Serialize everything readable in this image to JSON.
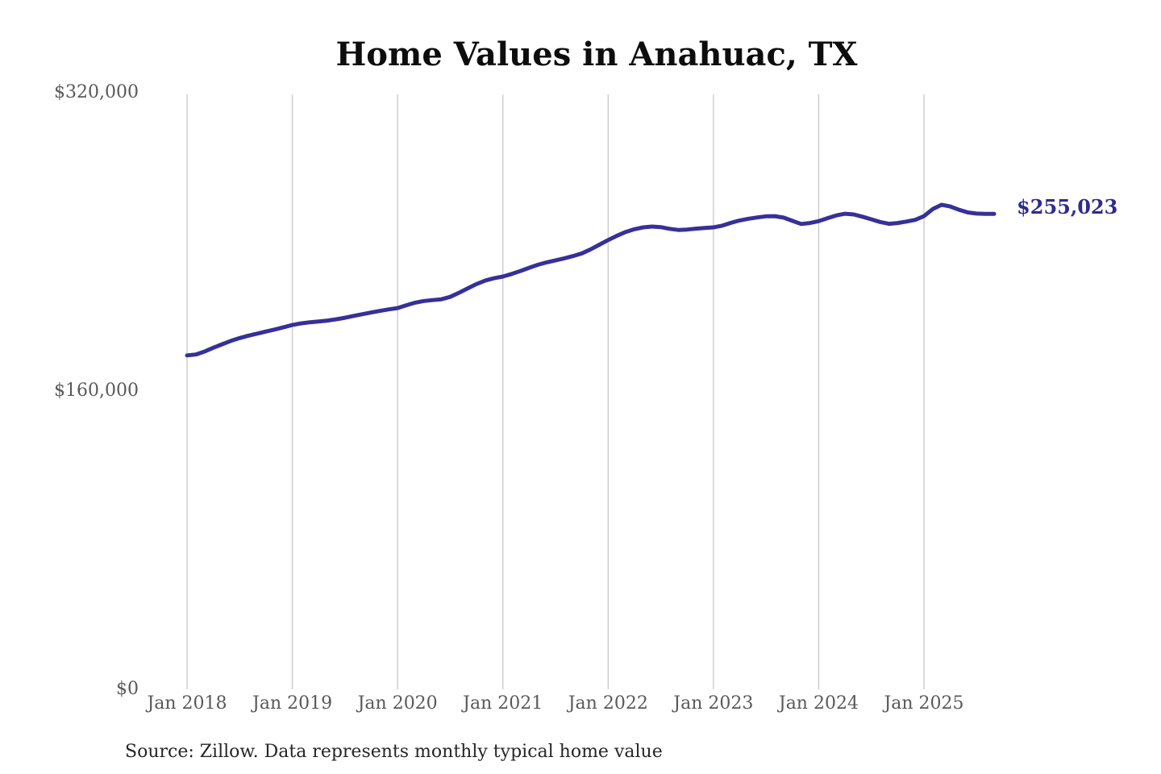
{
  "title": "Home Values in Anahuac, TX",
  "source_note": "Source: Zillow. Data represents monthly typical home value",
  "annotation": {
    "end_label": "$255,023"
  },
  "colors": {
    "line": "#36309a",
    "end_label_text": "#2f2b8e",
    "gridline": "#cccccc",
    "tick_text": "#595959",
    "title_text": "#0d0d0d",
    "source_text": "#262626",
    "background": "#ffffff"
  },
  "chart_data": {
    "type": "line",
    "title": "Home Values in Anahuac, TX",
    "x_tick_labels": [
      "Jan 2018",
      "Jan 2019",
      "Jan 2020",
      "Jan 2021",
      "Jan 2022",
      "Jan 2023",
      "Jan 2024",
      "Jan 2025"
    ],
    "y_ticks": [
      {
        "label": "$0",
        "value": 0
      },
      {
        "label": "$160,000",
        "value": 160000
      },
      {
        "label": "$320,000",
        "value": 320000
      }
    ],
    "ylim": [
      0,
      320000
    ],
    "grid": "vertical",
    "legend": "none",
    "series": [
      {
        "name": "Monthly typical home value",
        "start_month": "2018-01",
        "frequency": "monthly",
        "final_value": 255023,
        "values": [
          179100,
          179600,
          181200,
          183200,
          185100,
          186900,
          188400,
          189700,
          190800,
          191900,
          193000,
          194200,
          195400,
          196300,
          196900,
          197300,
          197800,
          198500,
          199300,
          200300,
          201200,
          202100,
          203000,
          203800,
          204500,
          206000,
          207400,
          208300,
          208800,
          209200,
          210500,
          212700,
          215100,
          217400,
          219300,
          220500,
          221400,
          222800,
          224400,
          226100,
          227700,
          229000,
          230100,
          231200,
          232400,
          233800,
          236000,
          238500,
          241000,
          243300,
          245300,
          246800,
          247800,
          248200,
          247900,
          247000,
          246400,
          246600,
          247100,
          247500,
          247800,
          248700,
          250200,
          251500,
          252400,
          253100,
          253700,
          253800,
          253000,
          251300,
          249600,
          250100,
          251100,
          252700,
          254200,
          255100,
          254700,
          253500,
          252100,
          250700,
          249700,
          250100,
          250900,
          251800,
          253800,
          257600,
          259900,
          259000,
          257200,
          255800,
          255200,
          255000,
          255023
        ]
      }
    ]
  }
}
